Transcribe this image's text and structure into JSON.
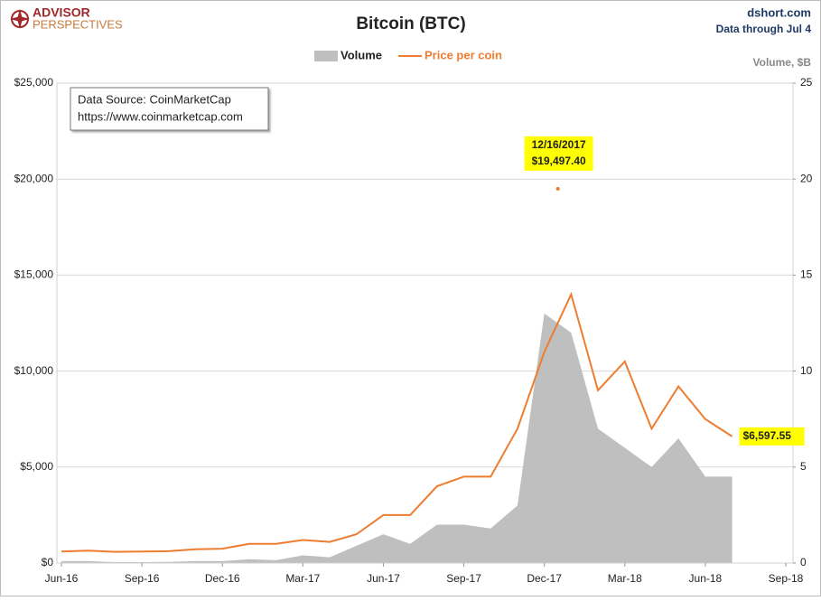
{
  "chart_data": {
    "type": "line",
    "title": "Bitcoin (BTC)",
    "logo": [
      "ADVISOR",
      "PERSPECTIVES"
    ],
    "source": "dshort.com",
    "subtitle": "Data through Jul 4",
    "y2_label": "Volume, $B",
    "note": [
      "Data Source: CoinMarketCap",
      "https://www.coinmarketcap.com"
    ],
    "x": [
      "2016-06",
      "2016-07",
      "2016-08",
      "2016-09",
      "2016-10",
      "2016-11",
      "2016-12",
      "2017-01",
      "2017-02",
      "2017-03",
      "2017-04",
      "2017-05",
      "2017-06",
      "2017-07",
      "2017-08",
      "2017-09",
      "2017-10",
      "2017-11",
      "2017-12",
      "2018-01",
      "2018-02",
      "2018-03",
      "2018-04",
      "2018-05",
      "2018-06",
      "2018-07"
    ],
    "xlim": [
      "2016-06",
      "2018-09"
    ],
    "xticks": [
      {
        "value": "2016-06",
        "label": "Jun-16"
      },
      {
        "value": "2016-09",
        "label": "Sep-16"
      },
      {
        "value": "2016-12",
        "label": "Dec-16"
      },
      {
        "value": "2017-03",
        "label": "Mar-17"
      },
      {
        "value": "2017-06",
        "label": "Jun-17"
      },
      {
        "value": "2017-09",
        "label": "Sep-17"
      },
      {
        "value": "2017-12",
        "label": "Dec-17"
      },
      {
        "value": "2018-03",
        "label": "Mar-18"
      },
      {
        "value": "2018-06",
        "label": "Jun-18"
      },
      {
        "value": "2018-09",
        "label": "Sep-18"
      }
    ],
    "ylim": [
      0,
      25000
    ],
    "yticks": [
      {
        "value": 0,
        "label": "$0"
      },
      {
        "value": 5000,
        "label": "$5,000"
      },
      {
        "value": 10000,
        "label": "$10,000"
      },
      {
        "value": 15000,
        "label": "$15,000"
      },
      {
        "value": 20000,
        "label": "$20,000"
      },
      {
        "value": 25000,
        "label": "$25,000"
      }
    ],
    "y2lim": [
      0,
      25
    ],
    "y2ticks": [
      0,
      5,
      10,
      15,
      20,
      25
    ],
    "grid": true,
    "series": [
      {
        "name": "Volume",
        "type": "area",
        "axis": "y2",
        "color": "#bfbfbf",
        "values": [
          0.1,
          0.1,
          0.05,
          0.05,
          0.06,
          0.1,
          0.1,
          0.2,
          0.15,
          0.4,
          0.3,
          0.9,
          1.5,
          1.0,
          2.0,
          2.0,
          1.8,
          3.0,
          13,
          12,
          7,
          6,
          5,
          6.5,
          4.5,
          4.5
        ]
      },
      {
        "name": "Price per coin",
        "color": "#ed7d31",
        "values": [
          600,
          650,
          580,
          600,
          620,
          720,
          750,
          1000,
          1000,
          1200,
          1100,
          1500,
          2500,
          2500,
          4000,
          4500,
          4500,
          7000,
          11000,
          14000,
          9000,
          10500,
          7000,
          9200,
          7500,
          6597.55
        ],
        "value_labels": [
          null,
          null,
          null,
          null,
          null,
          null,
          null,
          null,
          null,
          null,
          null,
          null,
          null,
          null,
          null,
          null,
          null,
          null,
          null,
          null,
          null,
          null,
          null,
          null,
          null,
          "$6,597.55"
        ]
      }
    ],
    "annotations": [
      {
        "x": "2017-12",
        "value": 19497.4,
        "label": [
          "12/16/2017",
          "$19,497.40"
        ]
      }
    ]
  }
}
